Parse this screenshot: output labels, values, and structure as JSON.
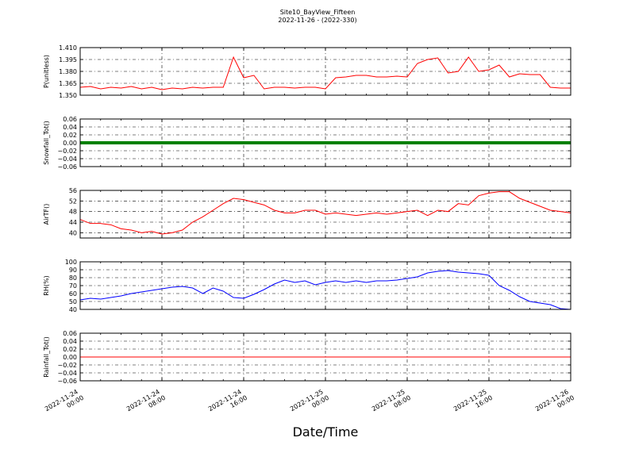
{
  "title": "Site10_BayView_Fifteen",
  "subtitle": "2022-11-26 - (2022-330)",
  "chart_data": [
    {
      "type": "line",
      "ylabel": "P(unitless)",
      "ylim": [
        1.35,
        1.41
      ],
      "yticks": [
        {
          "value": 1.35,
          "label": "1.350"
        },
        1.365,
        {
          "value": 1.38,
          "label": "1.380"
        },
        1.395,
        {
          "value": 1.41,
          "label": "1.410"
        }
      ],
      "grid": true,
      "xlim": [
        "2022-11-24 00:00",
        "2022-11-26 00:00"
      ],
      "xticks": [
        "2022-11-24 00:00",
        "2022-11-24 08:00",
        "2022-11-24 16:00",
        "2022-11-25 00:00",
        "2022-11-25 08:00",
        "2022-11-25 16:00",
        "2022-11-26 00:00"
      ],
      "x": [
        "2022-11-24 00:00",
        "2022-11-24 01:00",
        "2022-11-24 02:00",
        "2022-11-24 03:00",
        "2022-11-24 04:00",
        "2022-11-24 05:00",
        "2022-11-24 06:00",
        "2022-11-24 07:00",
        "2022-11-24 08:00",
        "2022-11-24 09:00",
        "2022-11-24 10:00",
        "2022-11-24 11:00",
        "2022-11-24 12:00",
        "2022-11-24 13:00",
        "2022-11-24 14:00",
        "2022-11-24 15:00",
        "2022-11-24 16:00",
        "2022-11-24 17:00",
        "2022-11-24 18:00",
        "2022-11-24 19:00",
        "2022-11-24 20:00",
        "2022-11-24 21:00",
        "2022-11-24 22:00",
        "2022-11-24 23:00",
        "2022-11-25 00:00",
        "2022-11-25 01:00",
        "2022-11-25 02:00",
        "2022-11-25 03:00",
        "2022-11-25 04:00",
        "2022-11-25 05:00",
        "2022-11-25 06:00",
        "2022-11-25 07:00",
        "2022-11-25 08:00",
        "2022-11-25 09:00",
        "2022-11-25 10:00",
        "2022-11-25 11:00",
        "2022-11-25 12:00",
        "2022-11-25 13:00",
        "2022-11-25 14:00",
        "2022-11-25 15:00",
        "2022-11-25 16:00",
        "2022-11-25 17:00",
        "2022-11-25 18:00",
        "2022-11-25 19:00",
        "2022-11-25 20:00",
        "2022-11-25 21:00",
        "2022-11-25 22:00",
        "2022-11-25 23:00",
        "2022-11-26 00:00"
      ],
      "series": [
        {
          "name": "P",
          "color": "#ff0000",
          "values": [
            1.36,
            1.361,
            1.358,
            1.36,
            1.359,
            1.361,
            1.358,
            1.36,
            1.357,
            1.359,
            1.358,
            1.36,
            1.359,
            1.36,
            1.36,
            1.398,
            1.372,
            1.375,
            1.358,
            1.36,
            1.36,
            1.359,
            1.36,
            1.36,
            1.358,
            1.372,
            1.373,
            1.375,
            1.375,
            1.373,
            1.373,
            1.374,
            1.373,
            1.39,
            1.395,
            1.397,
            1.378,
            1.38,
            1.398,
            1.38,
            1.382,
            1.388,
            1.373,
            1.377,
            1.376,
            1.376,
            1.36,
            1.359,
            1.359
          ]
        }
      ]
    },
    {
      "type": "line",
      "ylabel": "Snowfall_Tot()",
      "ylim": [
        -0.06,
        0.06
      ],
      "yticks": [
        {
          "value": -0.06,
          "label": "−0.06"
        },
        {
          "value": -0.04,
          "label": "−0.04"
        },
        {
          "value": -0.02,
          "label": "−0.02"
        },
        {
          "value": 0,
          "label": "0.00"
        },
        0.02,
        0.04,
        0.06
      ],
      "grid": true,
      "xlim": [
        "2022-11-24 00:00",
        "2022-11-26 00:00"
      ],
      "xticks": [
        "2022-11-24 00:00",
        "2022-11-24 08:00",
        "2022-11-24 16:00",
        "2022-11-25 00:00",
        "2022-11-25 08:00",
        "2022-11-25 16:00",
        "2022-11-26 00:00"
      ],
      "x": [
        "2022-11-24 00:00",
        "2022-11-24 01:00",
        "2022-11-24 02:00",
        "2022-11-24 03:00",
        "2022-11-24 04:00",
        "2022-11-24 05:00",
        "2022-11-24 06:00",
        "2022-11-24 07:00",
        "2022-11-24 08:00",
        "2022-11-24 09:00",
        "2022-11-24 10:00",
        "2022-11-24 11:00",
        "2022-11-24 12:00",
        "2022-11-24 13:00",
        "2022-11-24 14:00",
        "2022-11-24 15:00",
        "2022-11-24 16:00",
        "2022-11-24 17:00",
        "2022-11-24 18:00",
        "2022-11-24 19:00",
        "2022-11-24 20:00",
        "2022-11-24 21:00",
        "2022-11-24 22:00",
        "2022-11-24 23:00",
        "2022-11-25 00:00",
        "2022-11-25 01:00",
        "2022-11-25 02:00",
        "2022-11-25 03:00",
        "2022-11-25 04:00",
        "2022-11-25 05:00",
        "2022-11-25 06:00",
        "2022-11-25 07:00",
        "2022-11-25 08:00",
        "2022-11-25 09:00",
        "2022-11-25 10:00",
        "2022-11-25 11:00",
        "2022-11-25 12:00",
        "2022-11-25 13:00",
        "2022-11-25 14:00",
        "2022-11-25 15:00",
        "2022-11-25 16:00",
        "2022-11-25 17:00",
        "2022-11-25 18:00",
        "2022-11-25 19:00",
        "2022-11-25 20:00",
        "2022-11-25 21:00",
        "2022-11-25 22:00",
        "2022-11-25 23:00",
        "2022-11-26 00:00"
      ],
      "series": [
        {
          "name": "Snowfall_Tot",
          "color": "#008000",
          "values": [
            0,
            0,
            0,
            0,
            0,
            0,
            0,
            0,
            0,
            0,
            0,
            0,
            0,
            0,
            0,
            0,
            0,
            0,
            0,
            0,
            0,
            0,
            0,
            0,
            0,
            0,
            0,
            0,
            0,
            0,
            0,
            0,
            0,
            0,
            0,
            0,
            0,
            0,
            0,
            0,
            0,
            0,
            0,
            0,
            0,
            0,
            0,
            0,
            0
          ]
        }
      ]
    },
    {
      "type": "line",
      "ylabel": "AirTF()",
      "ylim": [
        38,
        56
      ],
      "yticks": [
        40,
        44,
        48,
        52,
        56
      ],
      "grid": true,
      "xlim": [
        "2022-11-24 00:00",
        "2022-11-26 00:00"
      ],
      "xticks": [
        "2022-11-24 00:00",
        "2022-11-24 08:00",
        "2022-11-24 16:00",
        "2022-11-25 00:00",
        "2022-11-25 08:00",
        "2022-11-25 16:00",
        "2022-11-26 00:00"
      ],
      "x": [
        "2022-11-24 00:00",
        "2022-11-24 01:00",
        "2022-11-24 02:00",
        "2022-11-24 03:00",
        "2022-11-24 04:00",
        "2022-11-24 05:00",
        "2022-11-24 06:00",
        "2022-11-24 07:00",
        "2022-11-24 08:00",
        "2022-11-24 09:00",
        "2022-11-24 10:00",
        "2022-11-24 11:00",
        "2022-11-24 12:00",
        "2022-11-24 13:00",
        "2022-11-24 14:00",
        "2022-11-24 15:00",
        "2022-11-24 16:00",
        "2022-11-24 17:00",
        "2022-11-24 18:00",
        "2022-11-24 19:00",
        "2022-11-24 20:00",
        "2022-11-24 21:00",
        "2022-11-24 22:00",
        "2022-11-24 23:00",
        "2022-11-25 00:00",
        "2022-11-25 01:00",
        "2022-11-25 02:00",
        "2022-11-25 03:00",
        "2022-11-25 04:00",
        "2022-11-25 05:00",
        "2022-11-25 06:00",
        "2022-11-25 07:00",
        "2022-11-25 08:00",
        "2022-11-25 09:00",
        "2022-11-25 10:00",
        "2022-11-25 11:00",
        "2022-11-25 12:00",
        "2022-11-25 13:00",
        "2022-11-25 14:00",
        "2022-11-25 15:00",
        "2022-11-25 16:00",
        "2022-11-25 17:00",
        "2022-11-25 18:00",
        "2022-11-25 19:00",
        "2022-11-25 20:00",
        "2022-11-25 21:00",
        "2022-11-25 22:00",
        "2022-11-25 23:00",
        "2022-11-26 00:00"
      ],
      "series": [
        {
          "name": "AirTF",
          "color": "#ff0000",
          "values": [
            45,
            43.5,
            43.5,
            43,
            41.5,
            41,
            40,
            40.5,
            39.5,
            40,
            41,
            44,
            46,
            48.5,
            51,
            53,
            52.5,
            51.5,
            50.5,
            48.5,
            47.5,
            47.5,
            48.5,
            48.5,
            47,
            47.5,
            47,
            46.5,
            47,
            47.5,
            47,
            47.5,
            48,
            48.5,
            46.5,
            48.5,
            48,
            51,
            50.5,
            54,
            55,
            55.5,
            55.5,
            53,
            51.5,
            50,
            48.5,
            48,
            47.5
          ]
        }
      ]
    },
    {
      "type": "line",
      "ylabel": "RH(%)",
      "ylim": [
        40,
        100
      ],
      "yticks": [
        40,
        50,
        60,
        70,
        80,
        90,
        100
      ],
      "grid": true,
      "xlim": [
        "2022-11-24 00:00",
        "2022-11-26 00:00"
      ],
      "xticks": [
        "2022-11-24 00:00",
        "2022-11-24 08:00",
        "2022-11-24 16:00",
        "2022-11-25 00:00",
        "2022-11-25 08:00",
        "2022-11-25 16:00",
        "2022-11-26 00:00"
      ],
      "x": [
        "2022-11-24 00:00",
        "2022-11-24 01:00",
        "2022-11-24 02:00",
        "2022-11-24 03:00",
        "2022-11-24 04:00",
        "2022-11-24 05:00",
        "2022-11-24 06:00",
        "2022-11-24 07:00",
        "2022-11-24 08:00",
        "2022-11-24 09:00",
        "2022-11-24 10:00",
        "2022-11-24 11:00",
        "2022-11-24 12:00",
        "2022-11-24 13:00",
        "2022-11-24 14:00",
        "2022-11-24 15:00",
        "2022-11-24 16:00",
        "2022-11-24 17:00",
        "2022-11-24 18:00",
        "2022-11-24 19:00",
        "2022-11-24 20:00",
        "2022-11-24 21:00",
        "2022-11-24 22:00",
        "2022-11-24 23:00",
        "2022-11-25 00:00",
        "2022-11-25 01:00",
        "2022-11-25 02:00",
        "2022-11-25 03:00",
        "2022-11-25 04:00",
        "2022-11-25 05:00",
        "2022-11-25 06:00",
        "2022-11-25 07:00",
        "2022-11-25 08:00",
        "2022-11-25 09:00",
        "2022-11-25 10:00",
        "2022-11-25 11:00",
        "2022-11-25 12:00",
        "2022-11-25 13:00",
        "2022-11-25 14:00",
        "2022-11-25 15:00",
        "2022-11-25 16:00",
        "2022-11-25 17:00",
        "2022-11-25 18:00",
        "2022-11-25 19:00",
        "2022-11-25 20:00",
        "2022-11-25 21:00",
        "2022-11-25 22:00",
        "2022-11-25 23:00",
        "2022-11-26 00:00"
      ],
      "series": [
        {
          "name": "RH",
          "color": "#0000ff",
          "values": [
            52,
            54,
            53,
            55,
            57,
            60,
            62,
            64,
            66,
            68,
            69,
            67,
            60,
            67,
            63,
            55,
            54,
            59,
            65,
            72,
            77,
            74,
            76,
            71,
            74,
            76,
            74,
            76,
            74,
            76,
            76,
            77,
            79,
            81,
            86,
            88,
            89,
            87,
            86,
            85,
            83,
            70,
            64,
            56,
            50,
            48,
            46,
            41,
            40
          ]
        }
      ]
    },
    {
      "type": "line",
      "ylabel": "Rainfall_Tot()",
      "xlabel": "Date/Time",
      "ylim": [
        -0.06,
        0.06
      ],
      "yticks": [
        {
          "value": -0.06,
          "label": "−0.06"
        },
        {
          "value": -0.04,
          "label": "−0.04"
        },
        {
          "value": -0.02,
          "label": "−0.02"
        },
        {
          "value": 0,
          "label": "0.00"
        },
        0.02,
        0.04,
        0.06
      ],
      "grid": true,
      "xlim": [
        "2022-11-24 00:00",
        "2022-11-26 00:00"
      ],
      "xticks": [
        "2022-11-24 00:00",
        "2022-11-24 08:00",
        "2022-11-24 16:00",
        "2022-11-25 00:00",
        "2022-11-25 08:00",
        "2022-11-25 16:00",
        "2022-11-26 00:00"
      ],
      "x": [
        "2022-11-24 00:00",
        "2022-11-24 01:00",
        "2022-11-24 02:00",
        "2022-11-24 03:00",
        "2022-11-24 04:00",
        "2022-11-24 05:00",
        "2022-11-24 06:00",
        "2022-11-24 07:00",
        "2022-11-24 08:00",
        "2022-11-24 09:00",
        "2022-11-24 10:00",
        "2022-11-24 11:00",
        "2022-11-24 12:00",
        "2022-11-24 13:00",
        "2022-11-24 14:00",
        "2022-11-24 15:00",
        "2022-11-24 16:00",
        "2022-11-24 17:00",
        "2022-11-24 18:00",
        "2022-11-24 19:00",
        "2022-11-24 20:00",
        "2022-11-24 21:00",
        "2022-11-24 22:00",
        "2022-11-24 23:00",
        "2022-11-25 00:00",
        "2022-11-25 01:00",
        "2022-11-25 02:00",
        "2022-11-25 03:00",
        "2022-11-25 04:00",
        "2022-11-25 05:00",
        "2022-11-25 06:00",
        "2022-11-25 07:00",
        "2022-11-25 08:00",
        "2022-11-25 09:00",
        "2022-11-25 10:00",
        "2022-11-25 11:00",
        "2022-11-25 12:00",
        "2022-11-25 13:00",
        "2022-11-25 14:00",
        "2022-11-25 15:00",
        "2022-11-25 16:00",
        "2022-11-25 17:00",
        "2022-11-25 18:00",
        "2022-11-25 19:00",
        "2022-11-25 20:00",
        "2022-11-25 21:00",
        "2022-11-25 22:00",
        "2022-11-25 23:00",
        "2022-11-26 00:00"
      ],
      "series": [
        {
          "name": "Rainfall_Tot",
          "color": "#ff0000",
          "values": [
            0,
            0,
            0,
            0,
            0,
            0,
            0,
            0,
            0,
            0,
            0,
            0,
            0,
            0,
            0,
            0,
            0,
            0,
            0,
            0,
            0,
            0,
            0,
            0,
            0,
            0,
            0,
            0,
            0,
            0,
            0,
            0,
            0,
            0,
            0,
            0,
            0,
            0,
            0,
            0,
            0,
            0,
            0,
            0,
            0,
            0,
            0,
            0,
            0
          ]
        }
      ]
    }
  ]
}
